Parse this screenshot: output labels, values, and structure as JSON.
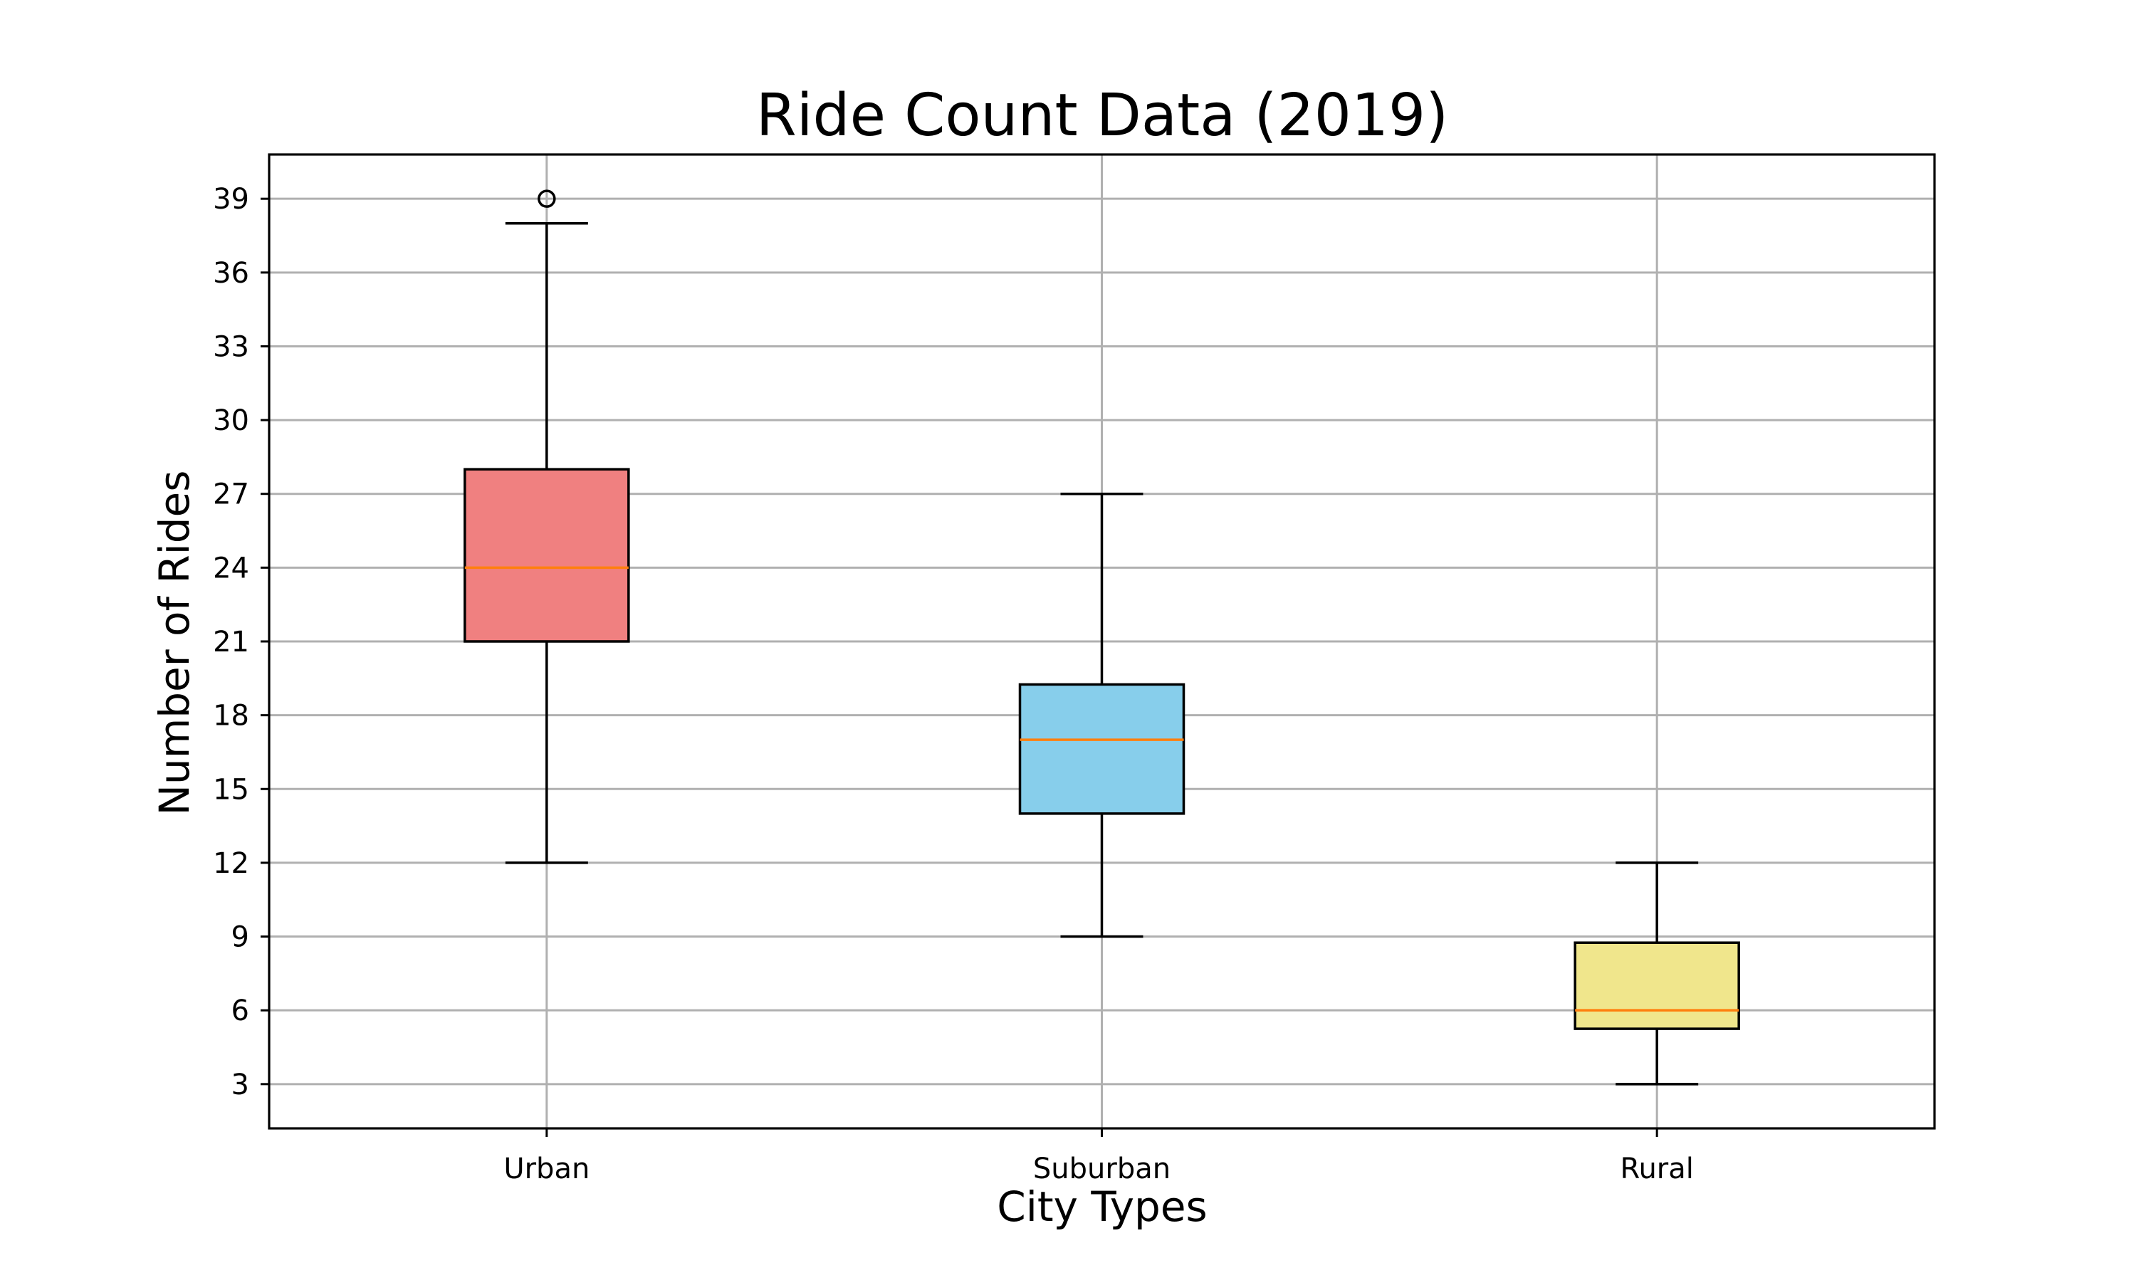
{
  "chart_data": {
    "type": "boxplot",
    "title": "Ride Count Data (2019)",
    "xlabel": "City Types",
    "ylabel": "Number of Rides",
    "ylim": [
      1.2,
      40.8
    ],
    "yticks": [
      3,
      6,
      9,
      12,
      15,
      18,
      21,
      24,
      27,
      30,
      33,
      36,
      39
    ],
    "grid": true,
    "categories": [
      "Urban",
      "Suburban",
      "Rural"
    ],
    "boxes": [
      {
        "category": "Urban",
        "whisker_low": 12,
        "q1": 21,
        "median": 24,
        "q3": 28,
        "whisker_high": 38,
        "fliers": [
          39
        ],
        "color": "#f08080"
      },
      {
        "category": "Suburban",
        "whisker_low": 9,
        "q1": 14,
        "median": 17,
        "q3": 19.25,
        "whisker_high": 27,
        "fliers": [],
        "color": "#87ceeb"
      },
      {
        "category": "Rural",
        "whisker_low": 3,
        "q1": 5.25,
        "median": 6,
        "q3": 8.75,
        "whisker_high": 12,
        "fliers": [],
        "color": "#f0e68c"
      }
    ],
    "median_color": "#ff7f0e",
    "grid_color": "#b0b0b0"
  }
}
